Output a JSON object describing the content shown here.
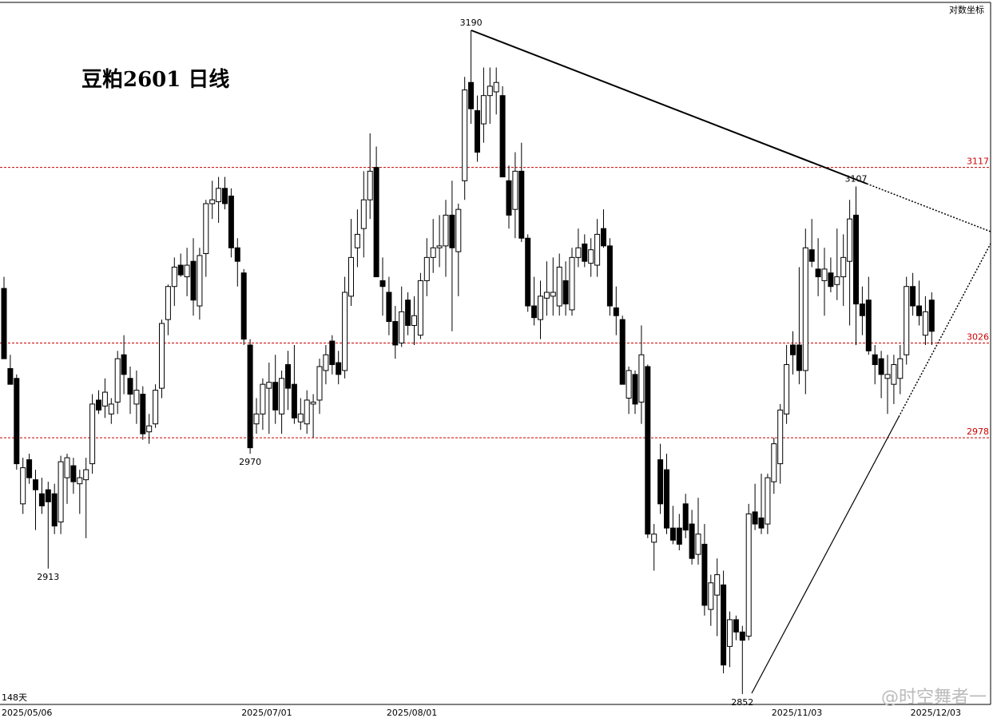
{
  "chart_data": {
    "type": "candlestick",
    "title": "豆粕2601 日线",
    "scale_label": "对数坐标",
    "count_label": "148天",
    "watermark": "@时空舞者一",
    "log_scale": true,
    "ylim": [
      2847,
      3205
    ],
    "up_color": "#ffffff",
    "down_color": "#000000",
    "level_color": "#cc0000",
    "levels": [
      3117,
      3026,
      2978
    ],
    "annotations": [
      {
        "index": 74,
        "value": 3190,
        "side": "high"
      },
      {
        "index": 135,
        "value": 3107,
        "side": "high"
      },
      {
        "index": 39,
        "value": 2970,
        "side": "low"
      },
      {
        "index": 7,
        "value": 2913,
        "side": "low"
      },
      {
        "index": 117,
        "value": 2852,
        "side": "low"
      }
    ],
    "categories": [
      "2025/05/06",
      null,
      null,
      null,
      null,
      null,
      null,
      null,
      null,
      null,
      null,
      null,
      null,
      null,
      null,
      null,
      null,
      null,
      null,
      null,
      null,
      null,
      null,
      null,
      null,
      null,
      null,
      null,
      null,
      null,
      null,
      null,
      null,
      null,
      null,
      null,
      null,
      null,
      "2025/07/01",
      null,
      null,
      null,
      null,
      null,
      null,
      null,
      null,
      null,
      null,
      null,
      null,
      null,
      null,
      null,
      null,
      null,
      null,
      null,
      null,
      null,
      null,
      "2025/08/01",
      null,
      null,
      null,
      null,
      null,
      null,
      null,
      null,
      null,
      null,
      null,
      null,
      null,
      null,
      null,
      null,
      null,
      null,
      null,
      null,
      null,
      null,
      null,
      null,
      null,
      null,
      null,
      null,
      null,
      null,
      null,
      null,
      null,
      null,
      null,
      null,
      null,
      null,
      null,
      null,
      null,
      null,
      null,
      null,
      null,
      null,
      null,
      null,
      null,
      null,
      null,
      null,
      null,
      null,
      null,
      null,
      null,
      null,
      null,
      null,
      "2025/11/03",
      null,
      null,
      null,
      null,
      null,
      null,
      null,
      null,
      null,
      null,
      null,
      null,
      null,
      null,
      null,
      null,
      null,
      null,
      null,
      null,
      null,
      "2025/12/03",
      null,
      null,
      null
    ],
    "candles": [
      [
        3054,
        3060,
        3018,
        3018
      ],
      [
        3013,
        3020,
        3005,
        3005
      ],
      [
        3008,
        3010,
        2962,
        2965
      ],
      [
        2945,
        2968,
        2940,
        2963
      ],
      [
        2967,
        2970,
        2955,
        2958
      ],
      [
        2957,
        2962,
        2932,
        2952
      ],
      [
        2950,
        2958,
        2940,
        2944
      ],
      [
        2952,
        2956,
        2913,
        2946
      ],
      [
        2950,
        2955,
        2930,
        2934
      ],
      [
        2936,
        2969,
        2930,
        2966
      ],
      [
        2958,
        2970,
        2945,
        2968
      ],
      [
        2964,
        2968,
        2950,
        2956
      ],
      [
        2955,
        2962,
        2940,
        2958
      ],
      [
        2957,
        2968,
        2928,
        2962
      ],
      [
        2965,
        3000,
        2960,
        2995
      ],
      [
        2997,
        3002,
        2990,
        2992
      ],
      [
        2994,
        3008,
        2988,
        3001
      ],
      [
        2990,
        2998,
        2985,
        2995
      ],
      [
        2996,
        3022,
        2990,
        3018
      ],
      [
        3020,
        3030,
        3000,
        3010
      ],
      [
        3008,
        3014,
        2990,
        3000
      ],
      [
        2995,
        3012,
        2985,
        3002
      ],
      [
        3000,
        3004,
        2977,
        2980
      ],
      [
        2981,
        2990,
        2975,
        2984
      ],
      [
        2985,
        3005,
        2983,
        3002
      ],
      [
        3003,
        3038,
        2998,
        3036
      ],
      [
        3038,
        3056,
        3030,
        3055
      ],
      [
        3055,
        3070,
        3045,
        3065
      ],
      [
        3066,
        3072,
        3060,
        3061
      ],
      [
        3060,
        3075,
        3050,
        3066
      ],
      [
        3068,
        3080,
        3040,
        3048
      ],
      [
        3045,
        3075,
        3038,
        3071
      ],
      [
        3072,
        3100,
        3060,
        3098
      ],
      [
        3098,
        3110,
        3090,
        3100
      ],
      [
        3099,
        3112,
        3088,
        3106
      ],
      [
        3106,
        3112,
        3095,
        3098
      ],
      [
        3102,
        3106,
        3070,
        3075
      ],
      [
        3075,
        3080,
        3055,
        3068
      ],
      [
        3062,
        3064,
        3025,
        3028
      ],
      [
        3025,
        3028,
        2970,
        2973
      ],
      [
        2985,
        2998,
        2980,
        2990
      ],
      [
        2990,
        3008,
        2982,
        3005
      ],
      [
        3003,
        3016,
        2980,
        3006
      ],
      [
        3006,
        3020,
        2985,
        2992
      ],
      [
        2990,
        3012,
        2980,
        3008
      ],
      [
        3015,
        3022,
        2992,
        3003
      ],
      [
        3005,
        3025,
        2985,
        2988
      ],
      [
        2986,
        2998,
        2982,
        2990
      ],
      [
        2985,
        3002,
        2980,
        2997
      ],
      [
        2995,
        3000,
        2978,
        2996
      ],
      [
        2997,
        3018,
        2990,
        3014
      ],
      [
        3012,
        3025,
        3005,
        3020
      ],
      [
        3027,
        3030,
        3010,
        3015
      ],
      [
        3016,
        3022,
        3005,
        3010
      ],
      [
        3012,
        3060,
        3008,
        3052
      ],
      [
        3050,
        3090,
        3045,
        3070
      ],
      [
        3075,
        3095,
        3065,
        3082
      ],
      [
        3085,
        3115,
        3070,
        3100
      ],
      [
        3100,
        3135,
        3090,
        3115
      ],
      [
        3117,
        3128,
        3060,
        3060
      ],
      [
        3058,
        3070,
        3040,
        3055
      ],
      [
        3052,
        3060,
        3030,
        3037
      ],
      [
        3037,
        3045,
        3018,
        3025
      ],
      [
        3026,
        3055,
        3024,
        3042
      ],
      [
        3048,
        3052,
        3030,
        3035
      ],
      [
        3035,
        3050,
        3025,
        3040
      ],
      [
        3030,
        3062,
        3028,
        3058
      ],
      [
        3058,
        3080,
        3050,
        3070
      ],
      [
        3070,
        3090,
        3062,
        3075
      ],
      [
        3075,
        3092,
        3065,
        3076
      ],
      [
        3076,
        3100,
        3060,
        3092
      ],
      [
        3092,
        3110,
        3032,
        3075
      ],
      [
        3073,
        3098,
        3050,
        3095
      ],
      [
        3110,
        3165,
        3100,
        3158
      ],
      [
        3162,
        3190,
        3140,
        3148
      ],
      [
        3147,
        3155,
        3120,
        3125
      ],
      [
        3140,
        3170,
        3130,
        3155
      ],
      [
        3155,
        3170,
        3140,
        3160
      ],
      [
        3157,
        3170,
        3145,
        3162
      ],
      [
        3155,
        3160,
        3112,
        3112
      ],
      [
        3110,
        3118,
        3085,
        3092
      ],
      [
        3095,
        3125,
        3080,
        3115
      ],
      [
        3115,
        3130,
        3078,
        3080
      ],
      [
        3080,
        3082,
        3042,
        3045
      ],
      [
        3045,
        3060,
        3035,
        3039
      ],
      [
        3038,
        3058,
        3028,
        3050
      ],
      [
        3049,
        3068,
        3040,
        3052
      ],
      [
        3050,
        3070,
        3040,
        3052
      ],
      [
        3045,
        3072,
        3040,
        3065
      ],
      [
        3058,
        3068,
        3040,
        3046
      ],
      [
        3043,
        3075,
        3040,
        3070
      ],
      [
        3070,
        3085,
        3065,
        3075
      ],
      [
        3077,
        3082,
        3065,
        3068
      ],
      [
        3067,
        3080,
        3060,
        3074
      ],
      [
        3066,
        3090,
        3060,
        3082
      ],
      [
        3085,
        3095,
        3075,
        3076
      ],
      [
        3076,
        3080,
        3040,
        3045
      ],
      [
        3044,
        3055,
        3030,
        3040
      ],
      [
        3038,
        3040,
        3005,
        3005
      ],
      [
        2998,
        3014,
        2990,
        3012
      ],
      [
        3010,
        3012,
        2990,
        2995
      ],
      [
        2996,
        3035,
        2985,
        3020
      ],
      [
        3014,
        3015,
        2928,
        2930
      ],
      [
        2926,
        2935,
        2912,
        2930
      ],
      [
        2967,
        2975,
        2940,
        2945
      ],
      [
        2962,
        2970,
        2930,
        2933
      ],
      [
        2933,
        2944,
        2925,
        2927
      ],
      [
        2933,
        2940,
        2922,
        2925
      ],
      [
        2945,
        2950,
        2928,
        2932
      ],
      [
        2935,
        2942,
        2915,
        2918
      ],
      [
        2920,
        2948,
        2915,
        2930
      ],
      [
        2925,
        2935,
        2890,
        2895
      ],
      [
        2893,
        2910,
        2885,
        2906
      ],
      [
        2900,
        2918,
        2880,
        2910
      ],
      [
        2905,
        2912,
        2862,
        2866
      ],
      [
        2875,
        2892,
        2865,
        2888
      ],
      [
        2888,
        2890,
        2878,
        2882
      ],
      [
        2882,
        2885,
        2852,
        2878
      ],
      [
        2880,
        2945,
        2878,
        2940
      ],
      [
        2941,
        2955,
        2932,
        2935
      ],
      [
        2938,
        2960,
        2930,
        2933
      ],
      [
        2935,
        2960,
        2930,
        2958
      ],
      [
        2956,
        2978,
        2950,
        2975
      ],
      [
        2965,
        2995,
        2955,
        2992
      ],
      [
        2990,
        3025,
        2985,
        3015
      ],
      [
        3025,
        3032,
        3010,
        3020
      ],
      [
        3025,
        3065,
        3005,
        3012
      ],
      [
        3012,
        3085,
        3000,
        3075
      ],
      [
        3074,
        3090,
        3065,
        3068
      ],
      [
        3064,
        3080,
        3050,
        3060
      ],
      [
        3058,
        3075,
        3040,
        3064
      ],
      [
        3062,
        3070,
        3052,
        3055
      ],
      [
        3056,
        3085,
        3048,
        3060
      ],
      [
        3060,
        3082,
        3045,
        3070
      ],
      [
        3068,
        3100,
        3035,
        3090
      ],
      [
        3092,
        3107,
        3025,
        3046
      ],
      [
        3046,
        3055,
        3030,
        3040
      ],
      [
        3048,
        3060,
        3020,
        3022
      ],
      [
        3020,
        3025,
        3005,
        3015
      ],
      [
        3018,
        3022,
        2998,
        3010
      ],
      [
        3008,
        3020,
        2990,
        3010
      ],
      [
        3005,
        3020,
        2995,
        3015
      ],
      [
        3008,
        3025,
        3000,
        3018
      ],
      [
        3020,
        3060,
        3015,
        3055
      ],
      [
        3055,
        3062,
        3040,
        3045
      ],
      [
        3045,
        3058,
        3035,
        3040
      ],
      [
        3030,
        3050,
        3025,
        3042
      ],
      [
        3048,
        3052,
        3025,
        3032
      ]
    ]
  }
}
